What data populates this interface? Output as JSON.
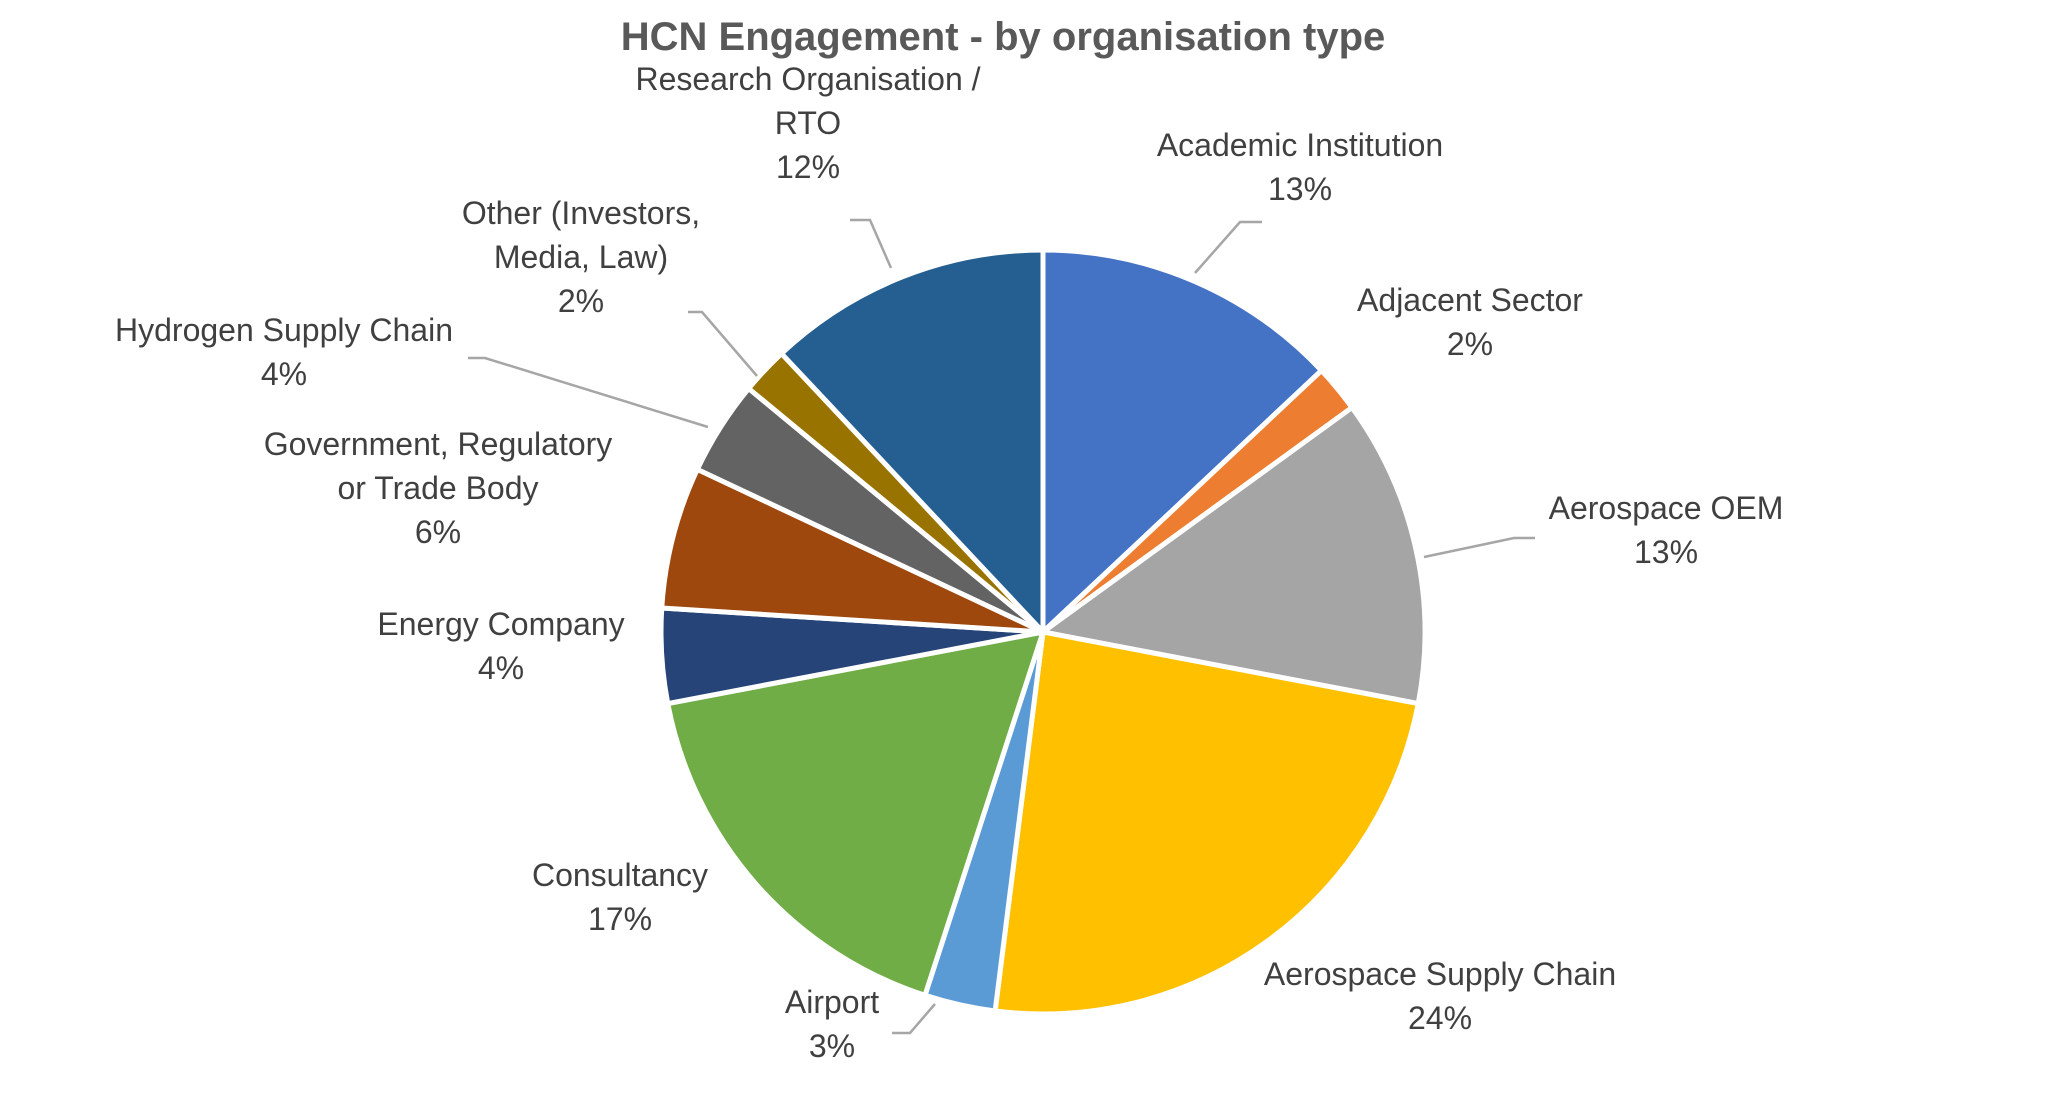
{
  "chart_data": {
    "type": "pie",
    "title": "HCN Engagement - by organisation type",
    "slices": [
      {
        "name": "Academic Institution",
        "label_lines": [
          "Academic Institution"
        ],
        "value": 13,
        "pct": "13%",
        "color": "#4472C4"
      },
      {
        "name": "Adjacent Sector",
        "label_lines": [
          "Adjacent Sector"
        ],
        "value": 2,
        "pct": "2%",
        "color": "#ED7D31"
      },
      {
        "name": "Aerospace OEM",
        "label_lines": [
          "Aerospace OEM"
        ],
        "value": 13,
        "pct": "13%",
        "color": "#A5A5A5"
      },
      {
        "name": "Aerospace Supply Chain",
        "label_lines": [
          "Aerospace Supply Chain"
        ],
        "value": 24,
        "pct": "24%",
        "color": "#FFC000"
      },
      {
        "name": "Airport",
        "label_lines": [
          "Airport"
        ],
        "value": 3,
        "pct": "3%",
        "color": "#5B9BD5"
      },
      {
        "name": "Consultancy",
        "label_lines": [
          "Consultancy"
        ],
        "value": 17,
        "pct": "17%",
        "color": "#70AD47"
      },
      {
        "name": "Energy Company",
        "label_lines": [
          "Energy Company"
        ],
        "value": 4,
        "pct": "4%",
        "color": "#264478"
      },
      {
        "name": "Government, Regulatory or Trade Body",
        "label_lines": [
          "Government, Regulatory",
          "or Trade Body"
        ],
        "value": 6,
        "pct": "6%",
        "color": "#9E480E"
      },
      {
        "name": "Hydrogen Supply Chain",
        "label_lines": [
          "Hydrogen Supply Chain"
        ],
        "value": 4,
        "pct": "4%",
        "color": "#636363"
      },
      {
        "name": "Other (Investors, Media, Law)",
        "label_lines": [
          "Other (Investors,",
          "Media, Law)"
        ],
        "value": 2,
        "pct": "2%",
        "color": "#997300"
      },
      {
        "name": "Research Organisation / RTO",
        "label_lines": [
          "Research Organisation /",
          "RTO"
        ],
        "value": 12,
        "pct": "12%",
        "color": "#255E91"
      }
    ],
    "start_angle": "12 o'clock",
    "direction": "clockwise",
    "legend": "none"
  }
}
